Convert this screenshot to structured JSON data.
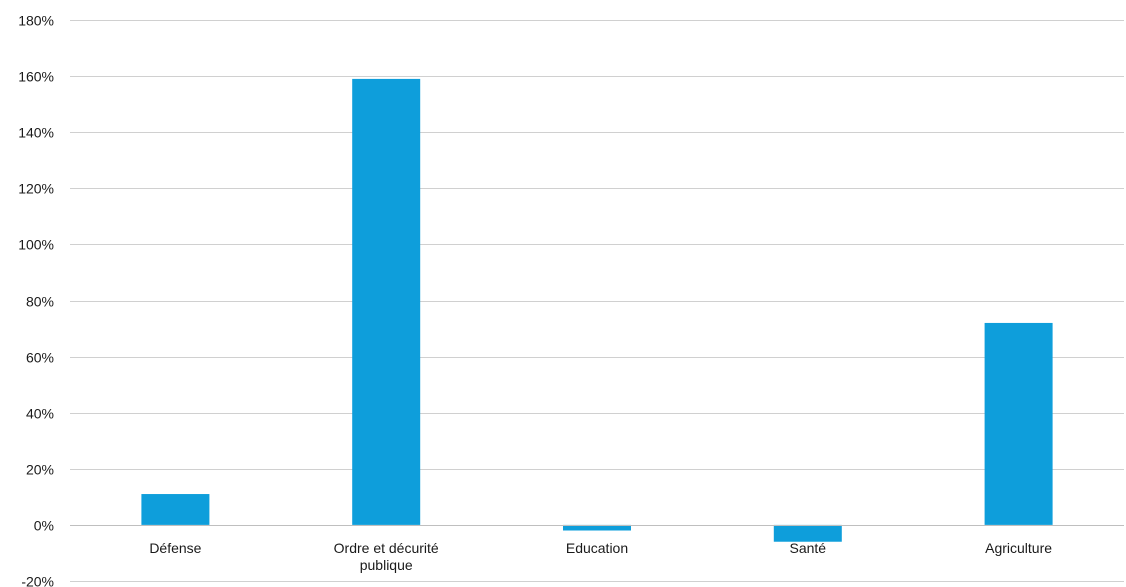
{
  "chart_data": {
    "type": "bar",
    "title": "",
    "xlabel": "",
    "ylabel": "",
    "categories": [
      [
        "Défense"
      ],
      [
        "Ordre et décurité",
        "publique"
      ],
      [
        "Education"
      ],
      [
        "Santé"
      ],
      [
        "Agriculture"
      ]
    ],
    "values": [
      0.11,
      1.59,
      -0.02,
      -0.06,
      0.72
    ],
    "ylim": [
      -0.2,
      1.8
    ],
    "yticks": [
      -0.2,
      0,
      0.2,
      0.4,
      0.6,
      0.8,
      1.0,
      1.2,
      1.4,
      1.6,
      1.8
    ],
    "ytick_labels": [
      "-20%",
      "0%",
      "20%",
      "40%",
      "60%",
      "80%",
      "100%",
      "120%",
      "140%",
      "160%",
      "180%"
    ],
    "grid": true,
    "legend": "none",
    "colors": {
      "bar": "#0e9edb",
      "grid": "#d0d0d0",
      "axis": "#bfbfbf"
    }
  }
}
